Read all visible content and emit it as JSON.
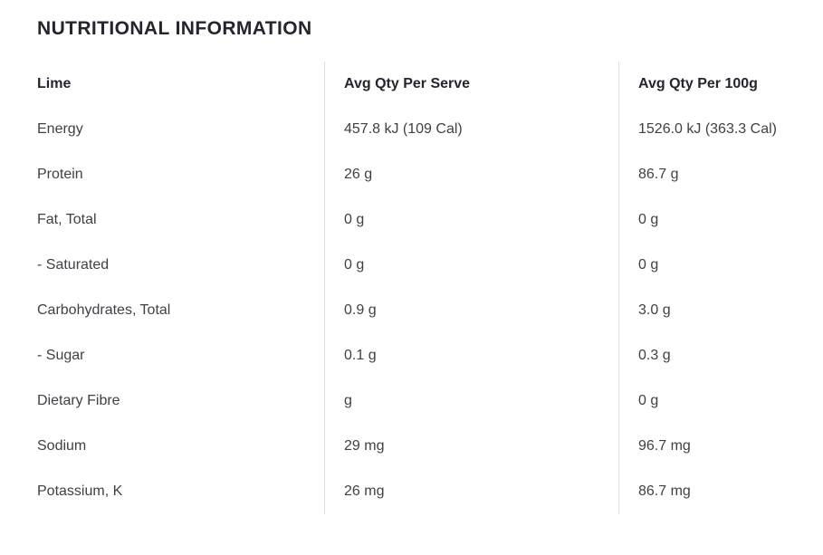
{
  "page": {
    "title": "NUTRITIONAL INFORMATION"
  },
  "table": {
    "columns": [
      "Lime",
      "Avg Qty Per Serve",
      "Avg Qty Per 100g"
    ],
    "rows": [
      {
        "label": "Energy",
        "per_serve": "457.8 kJ (109 Cal)",
        "per_100g": "1526.0 kJ (363.3 Cal)"
      },
      {
        "label": "Protein",
        "per_serve": "26 g",
        "per_100g": "86.7 g"
      },
      {
        "label": "Fat, Total",
        "per_serve": "0 g",
        "per_100g": "0 g"
      },
      {
        "label": "- Saturated",
        "per_serve": "0 g",
        "per_100g": "0 g"
      },
      {
        "label": "Carbohydrates, Total",
        "per_serve": "0.9 g",
        "per_100g": "3.0 g"
      },
      {
        "label": "- Sugar",
        "per_serve": "0.1 g",
        "per_100g": "0.3 g"
      },
      {
        "label": "Dietary Fibre",
        "per_serve": "g",
        "per_100g": "0 g"
      },
      {
        "label": "Sodium",
        "per_serve": "29 mg",
        "per_100g": "96.7 mg"
      },
      {
        "label": "Potassium, K",
        "per_serve": "26 mg",
        "per_100g": "86.7 mg"
      }
    ]
  },
  "colors": {
    "title_text": "#25252d",
    "body_text": "#404046",
    "divider": "#e0e0e0",
    "background": "#ffffff"
  }
}
